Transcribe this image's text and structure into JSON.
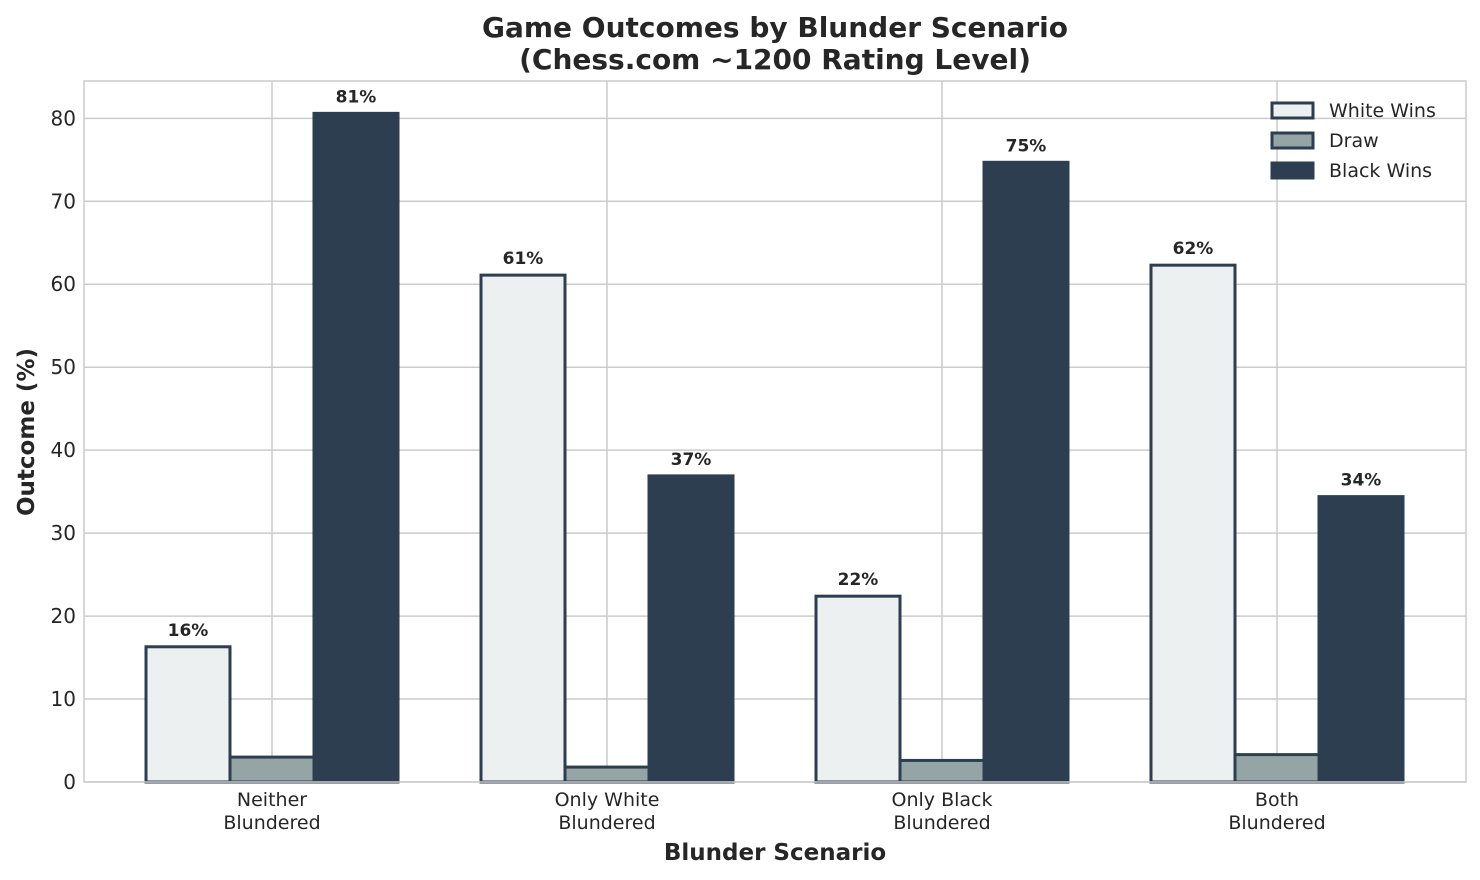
{
  "chart_data": {
    "type": "bar",
    "title_lines": [
      "Game Outcomes by Blunder Scenario",
      "(Chess.com ~1200 Rating Level)"
    ],
    "xlabel": "Blunder Scenario",
    "ylabel": "Outcome (%)",
    "ylim": [
      0,
      84.5
    ],
    "yticks": [
      0,
      10,
      20,
      30,
      40,
      50,
      60,
      70,
      80
    ],
    "grid": true,
    "legend_position": "top-right",
    "categories": [
      [
        "Neither",
        "Blundered"
      ],
      [
        "Only White",
        "Blundered"
      ],
      [
        "Only Black",
        "Blundered"
      ],
      [
        "Both",
        "Blundered"
      ]
    ],
    "series": [
      {
        "name": "White Wins",
        "color": "#ecf0f1",
        "edge": "#2c3e50",
        "values": [
          16.3,
          61.1,
          22.4,
          62.3
        ],
        "labels": [
          "16%",
          "61%",
          "22%",
          "62%"
        ]
      },
      {
        "name": "Draw",
        "color": "#95a5a6",
        "edge": "#2c3e50",
        "values": [
          3.0,
          1.8,
          2.6,
          3.3
        ],
        "labels": null
      },
      {
        "name": "Black Wins",
        "color": "#2c3e50",
        "edge": "#2c3e50",
        "values": [
          80.6,
          36.9,
          74.7,
          34.4
        ],
        "labels": [
          "81%",
          "37%",
          "75%",
          "34%"
        ]
      }
    ]
  }
}
